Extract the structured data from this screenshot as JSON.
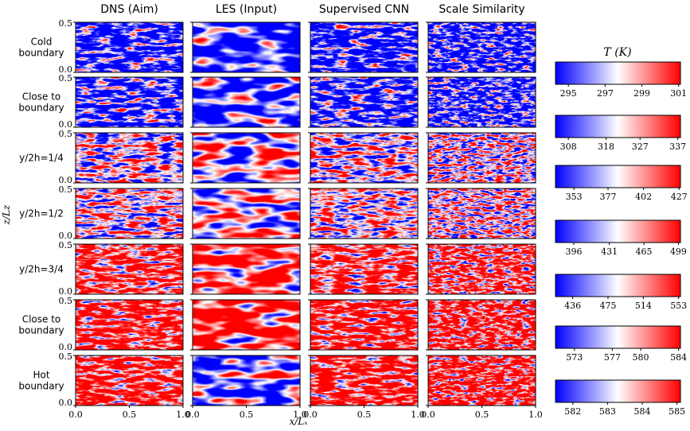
{
  "chart_data": {
    "type": "heatmap-grid",
    "columns": [
      "DNS (Aim)",
      "LES (Input)",
      "Supervised CNN",
      "Scale Similarity"
    ],
    "rows": [
      [
        "Cold",
        "boundary"
      ],
      [
        "Close to",
        "boundary"
      ],
      [
        "y/2h=1/4"
      ],
      [
        "y/2h=1/2"
      ],
      [
        "y/2h=3/4"
      ],
      [
        "Close to",
        "boundary"
      ],
      [
        "Hot",
        "boundary"
      ]
    ],
    "xlabel": "x/Lₓ",
    "ylabel": "z/Lz",
    "xlim": [
      0,
      1
    ],
    "xticks": [
      {
        "value": 0,
        "label": "0.0"
      },
      {
        "value": 0.5,
        "label": "0.5"
      },
      {
        "value": 1,
        "label": "1.0"
      }
    ],
    "ylim": [
      0,
      0.5
    ],
    "yticks": [
      {
        "value": 0,
        "label": "0.0"
      },
      {
        "value": 0.5,
        "label": "0.5"
      }
    ],
    "colormap": [
      "#0000ff",
      "#ffffff",
      "#ff0000"
    ],
    "colorbar_title": "T (K)",
    "colorbars": [
      {
        "lim": [
          294.3,
          301.1
        ],
        "ticks": [
          295,
          297,
          299,
          301
        ]
      },
      {
        "lim": [
          304.6,
          337.7
        ],
        "ticks": [
          308,
          318,
          327,
          337
        ]
      },
      {
        "lim": [
          340,
          428
        ],
        "ticks": [
          353,
          377,
          402,
          427
        ]
      },
      {
        "lim": [
          378,
          501
        ],
        "ticks": [
          396,
          431,
          465,
          499
        ]
      },
      {
        "lim": [
          417,
          555
        ],
        "ticks": [
          436,
          475,
          514,
          553
        ]
      },
      {
        "lim": [
          571,
          584.2
        ],
        "ticks": [
          573,
          577,
          580,
          584
        ]
      },
      {
        "lim": [
          581.5,
          585.1
        ],
        "ticks": [
          582,
          583,
          584,
          585
        ]
      }
    ]
  }
}
